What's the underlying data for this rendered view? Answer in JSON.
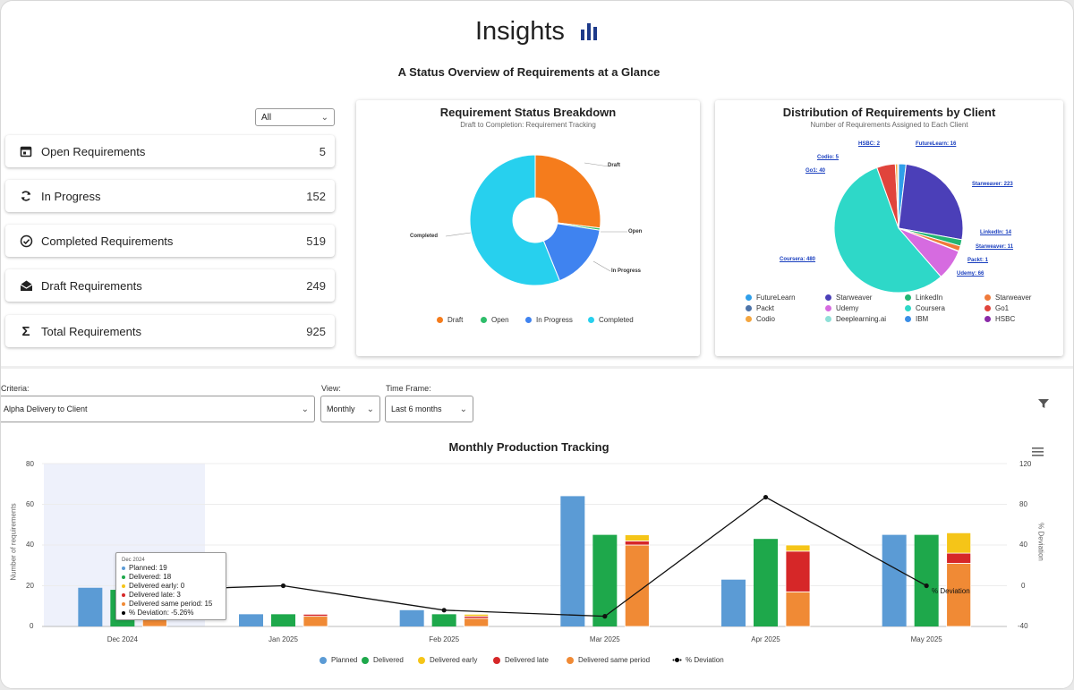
{
  "header": {
    "title": "Insights",
    "subtitle": "A Status Overview of Requirements at a Glance"
  },
  "filter": {
    "selected": "All"
  },
  "stats": [
    {
      "label": "Open Requirements",
      "value": "5",
      "icon": "calendar-icon"
    },
    {
      "label": "In Progress",
      "value": "152",
      "icon": "refresh-icon"
    },
    {
      "label": "Completed Requirements",
      "value": "519",
      "icon": "check-circle-icon"
    },
    {
      "label": "Draft Requirements",
      "value": "249",
      "icon": "envelope-open-icon"
    },
    {
      "label": "Total Requirements",
      "value": "925",
      "icon": "sigma-icon"
    }
  ],
  "status_chart": {
    "title": "Requirement Status Breakdown",
    "subtitle": "Draft to Completion: Requirement Tracking",
    "slice_labels": {
      "draft": "Draft",
      "open": "Open",
      "in_progress": "In Progress",
      "completed": "Completed"
    },
    "legend": [
      "Draft",
      "Open",
      "In Progress",
      "Completed"
    ],
    "colors": {
      "draft": "#f57c1c",
      "open": "#2ebd6a",
      "in_progress": "#3f83f0",
      "completed": "#27d0ee"
    }
  },
  "client_chart": {
    "title": "Distribution of Requirements by Client",
    "subtitle": "Number of Requirements Assigned to Each Client",
    "labels": {
      "hsbc": "HSBC: 2",
      "futurelearn": "FutureLearn: 16",
      "codio": "Codio: 5",
      "go1": "Go1: 40",
      "starweaver_223": "Starweaver: 223",
      "linkedin": "LinkedIn: 14",
      "starweaver_11": "Starweaver: 11",
      "packt": "Packt: 1",
      "udemy": "Udemy: 66",
      "coursera": "Coursera: 480"
    },
    "legend": [
      "FutureLearn",
      "Starweaver",
      "LinkedIn",
      "Starweaver",
      "Packt",
      "Udemy",
      "Coursera",
      "Go1",
      "Codio",
      "Deeplearning.ai",
      "IBM",
      "HSBC"
    ],
    "legend_colors": [
      "#2f9fea",
      "#4b3fb8",
      "#22b573",
      "#f07a3a",
      "#4d73a8",
      "#d66be0",
      "#2ed8c8",
      "#e0443c",
      "#f4a640",
      "#8fe0d8",
      "#3b8ee6",
      "#8a2aa8"
    ]
  },
  "controls": {
    "criteria_label": "Criteria:",
    "criteria_value": "Alpha Delivery to Client",
    "view_label": "View:",
    "view_value": "Monthly",
    "timeframe_label": "Time Frame:",
    "timeframe_value": "Last 6 months"
  },
  "production_chart": {
    "title": "Monthly Production Tracking",
    "y_left_label": "Number of requirements",
    "y_right_label": "% Deviation",
    "y_left_ticks": [
      "80",
      "60",
      "40",
      "20",
      "0"
    ],
    "y_right_ticks": [
      "120",
      "80",
      "40",
      "0",
      "-40"
    ],
    "tooltip": {
      "header": "Dec 2024",
      "lines": [
        "Planned: 19",
        "Delivered: 18",
        "Delivered early: 0",
        "Delivered late: 3",
        "Delivered same period: 15",
        "% Deviation: -5.26%"
      ],
      "colors": [
        "#5b9bd5",
        "#1ea84b",
        "#f5c518",
        "#d62728",
        "#f08a35",
        "#000000"
      ]
    },
    "deviation_tag": "% Deviation",
    "legend": [
      "Planned",
      "Delivered",
      "Delivered early",
      "Delivered late",
      "Delivered same period",
      "% Deviation"
    ],
    "legend_colors": [
      "#5b9bd5",
      "#1ea84b",
      "#f5c518",
      "#d62728",
      "#f08a35",
      "#000000"
    ]
  },
  "chart_data": [
    {
      "type": "pie",
      "title": "Requirement Status Breakdown",
      "subtitle": "Draft to Completion: Requirement Tracking",
      "categories": [
        "Draft",
        "Open",
        "In Progress",
        "Completed"
      ],
      "values": [
        249,
        5,
        152,
        519
      ],
      "colors": [
        "#f57c1c",
        "#2ebd6a",
        "#3f83f0",
        "#27d0ee"
      ]
    },
    {
      "type": "pie",
      "title": "Distribution of Requirements by Client",
      "subtitle": "Number of Requirements Assigned to Each Client",
      "categories": [
        "FutureLearn",
        "Starweaver",
        "LinkedIn",
        "Starweaver",
        "Packt",
        "Udemy",
        "Coursera",
        "Go1",
        "Codio",
        "HSBC"
      ],
      "values": [
        16,
        223,
        14,
        11,
        1,
        66,
        480,
        40,
        5,
        2
      ],
      "colors": [
        "#2f9fea",
        "#4b3fb8",
        "#22b573",
        "#f07a3a",
        "#4d73a8",
        "#d66be0",
        "#2ed8c8",
        "#e0443c",
        "#f4a640",
        "#8a2aa8"
      ]
    },
    {
      "type": "bar",
      "title": "Monthly Production Tracking",
      "categories": [
        "Dec 2024",
        "Jan 2025",
        "Feb 2025",
        "Mar 2025",
        "Apr 2025",
        "May 2025"
      ],
      "ylabel": "Number of requirements",
      "ylim": [
        0,
        80
      ],
      "y2label": "% Deviation",
      "y2lim": [
        -40,
        120
      ],
      "series": [
        {
          "name": "Planned",
          "values": [
            19,
            6,
            8,
            64,
            23,
            45
          ]
        },
        {
          "name": "Delivered",
          "values": [
            18,
            6,
            6,
            45,
            43,
            45
          ]
        },
        {
          "name": "Delivered early",
          "values": [
            0,
            0,
            1,
            3,
            3,
            10
          ]
        },
        {
          "name": "Delivered late",
          "values": [
            3,
            1,
            1,
            2,
            20,
            5
          ]
        },
        {
          "name": "Delivered same period",
          "values": [
            15,
            5,
            4,
            40,
            17,
            31
          ]
        },
        {
          "name": "% Deviation",
          "values": [
            -5.26,
            0,
            -24,
            -30,
            87,
            0
          ]
        }
      ]
    }
  ]
}
